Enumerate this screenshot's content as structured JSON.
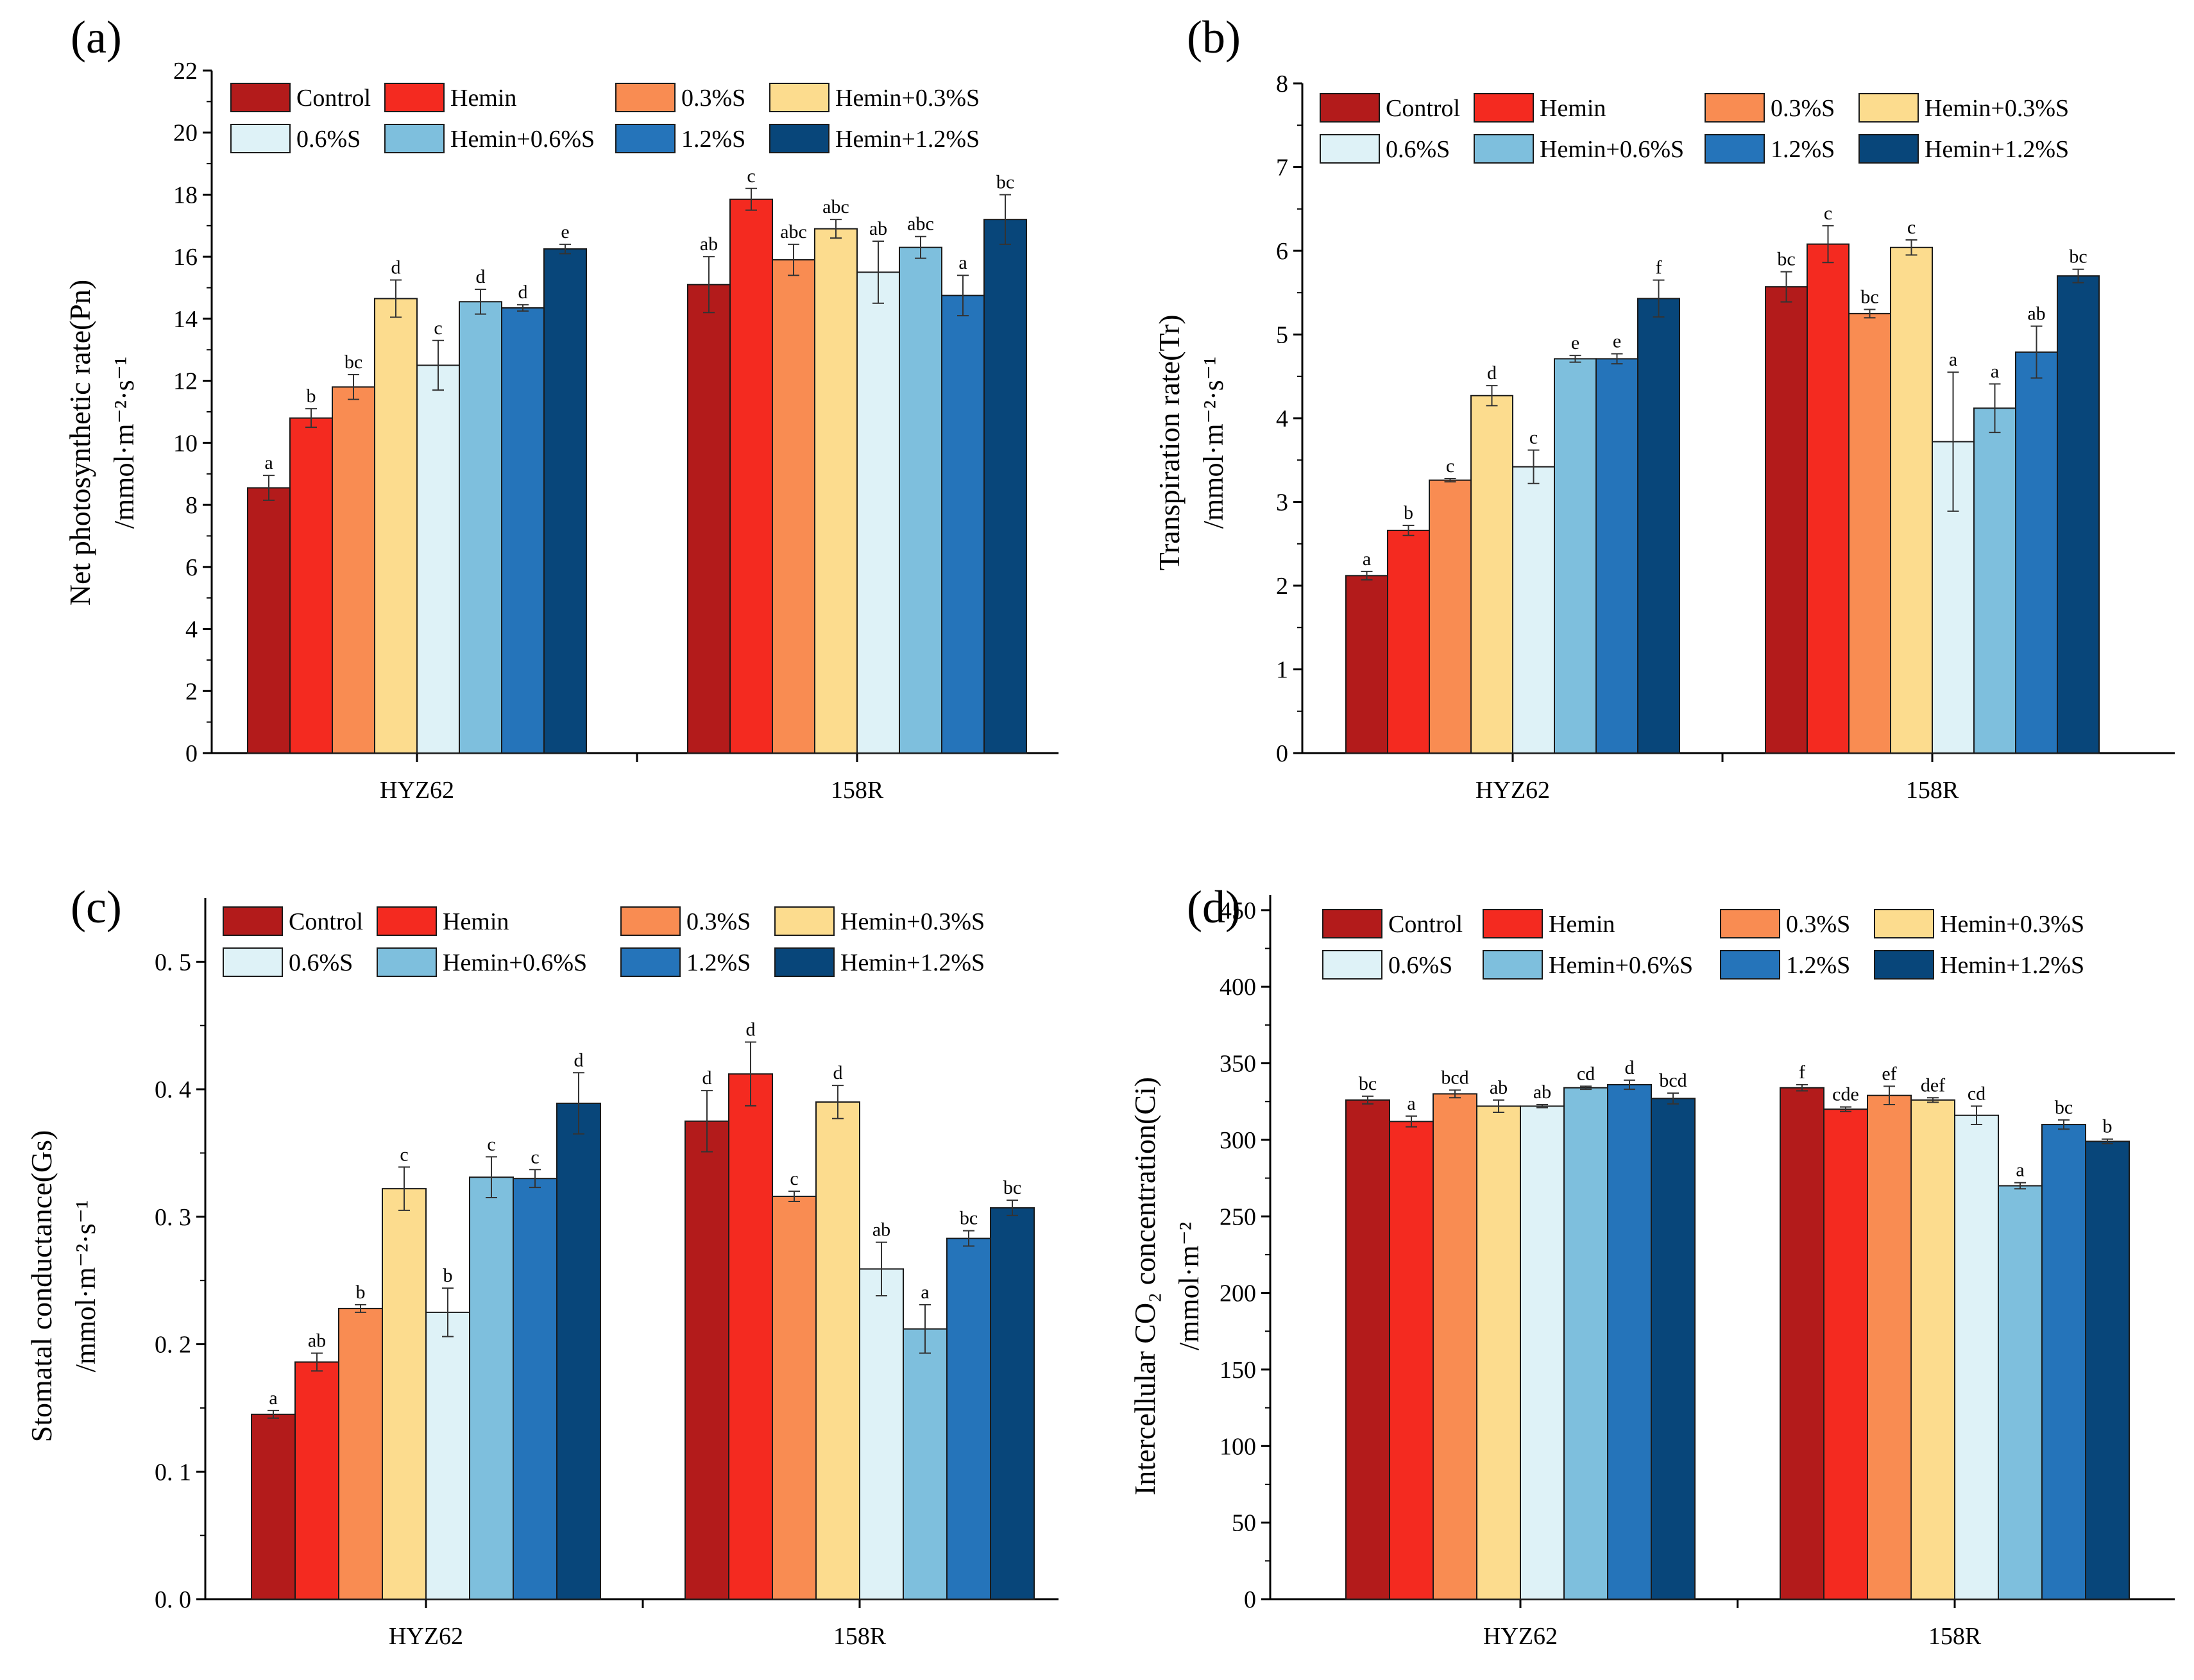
{
  "legend": {
    "labels": [
      "Control",
      "Hemin",
      "0.3%S",
      "Hemin+0.3%S",
      "0.6%S",
      "Hemin+0.6%S",
      "1.2%S",
      "Hemin+1.2%S"
    ],
    "colors": [
      "#b31b1b",
      "#f42a20",
      "#f98c52",
      "#fcdc8e",
      "#def2f7",
      "#7ebfdd",
      "#2574ba",
      "#08467a"
    ]
  },
  "chart_data": [
    {
      "type": "bar",
      "panel": "(a)",
      "title": "",
      "xlabel": "",
      "ylabel": "Net photosynthetic rate(Pn)",
      "ylabel_unit": "/mmol·m⁻²·s⁻¹",
      "categories": [
        "HYZ62",
        "158R"
      ],
      "ylim": [
        0,
        22
      ],
      "yticks": [
        0,
        2,
        4,
        6,
        8,
        10,
        12,
        14,
        16,
        18,
        20,
        22
      ],
      "series": [
        {
          "name": "Control",
          "values": [
            8.55,
            15.1
          ],
          "errors": [
            0.4,
            0.9
          ],
          "sig": [
            "a",
            "ab"
          ]
        },
        {
          "name": "Hemin",
          "values": [
            10.8,
            17.85
          ],
          "errors": [
            0.3,
            0.35
          ],
          "sig": [
            "b",
            "c"
          ]
        },
        {
          "name": "0.3%S",
          "values": [
            11.8,
            15.9
          ],
          "errors": [
            0.4,
            0.5
          ],
          "sig": [
            "bc",
            "abc"
          ]
        },
        {
          "name": "Hemin+0.3%S",
          "values": [
            14.65,
            16.9
          ],
          "errors": [
            0.6,
            0.3
          ],
          "sig": [
            "d",
            "abc"
          ]
        },
        {
          "name": "0.6%S",
          "values": [
            12.5,
            15.5
          ],
          "errors": [
            0.8,
            1.0
          ],
          "sig": [
            "c",
            "ab"
          ]
        },
        {
          "name": "Hemin+0.6%S",
          "values": [
            14.55,
            16.3
          ],
          "errors": [
            0.4,
            0.35
          ],
          "sig": [
            "d",
            "abc"
          ]
        },
        {
          "name": "1.2%S",
          "values": [
            14.35,
            14.75
          ],
          "errors": [
            0.1,
            0.65
          ],
          "sig": [
            "d",
            "a"
          ]
        },
        {
          "name": "Hemin+1.2%S",
          "values": [
            16.25,
            17.2
          ],
          "errors": [
            0.15,
            0.8
          ],
          "sig": [
            "e",
            "bc"
          ]
        }
      ]
    },
    {
      "type": "bar",
      "panel": "(b)",
      "title": "",
      "xlabel": "",
      "ylabel": "Transpiration rate(Tr)",
      "ylabel_unit": "/mmol·m⁻²·s⁻¹",
      "categories": [
        "HYZ62",
        "158R"
      ],
      "ylim": [
        0,
        8
      ],
      "yticks": [
        0,
        1,
        2,
        3,
        4,
        5,
        6,
        7,
        8
      ],
      "series": [
        {
          "name": "Control",
          "values": [
            2.12,
            5.57
          ],
          "errors": [
            0.05,
            0.18
          ],
          "sig": [
            "a",
            "bc"
          ]
        },
        {
          "name": "Hemin",
          "values": [
            2.66,
            6.08
          ],
          "errors": [
            0.06,
            0.22
          ],
          "sig": [
            "b",
            "c"
          ]
        },
        {
          "name": "0.3%S",
          "values": [
            3.26,
            5.25
          ],
          "errors": [
            0.02,
            0.05
          ],
          "sig": [
            "c",
            "bc"
          ]
        },
        {
          "name": "Hemin+0.3%S",
          "values": [
            4.27,
            6.04
          ],
          "errors": [
            0.12,
            0.09
          ],
          "sig": [
            "d",
            "c"
          ]
        },
        {
          "name": "0.6%S",
          "values": [
            3.42,
            3.72
          ],
          "errors": [
            0.2,
            0.83
          ],
          "sig": [
            "c",
            "a"
          ]
        },
        {
          "name": "Hemin+0.6%S",
          "values": [
            4.71,
            4.12
          ],
          "errors": [
            0.04,
            0.29
          ],
          "sig": [
            "e",
            "a"
          ]
        },
        {
          "name": "1.2%S",
          "values": [
            4.71,
            4.79
          ],
          "errors": [
            0.06,
            0.31
          ],
          "sig": [
            "e",
            "ab"
          ]
        },
        {
          "name": "Hemin+1.2%S",
          "values": [
            5.43,
            5.7
          ],
          "errors": [
            0.22,
            0.08
          ],
          "sig": [
            "f",
            "bc"
          ]
        }
      ]
    },
    {
      "type": "bar",
      "panel": "(c)",
      "title": "",
      "xlabel": "",
      "ylabel": "Stomatal conductance(Gs)",
      "ylabel_unit": "/mmol·m⁻²·s⁻¹",
      "categories": [
        "HYZ62",
        "158R"
      ],
      "ylim": [
        0,
        0.55
      ],
      "yticks": [
        0,
        0.1,
        0.2,
        0.3,
        0.4,
        0.5
      ],
      "ytick_labels": [
        "0. 0",
        "0. 1",
        "0. 2",
        "0. 3",
        "0. 4",
        "0. 5"
      ],
      "series": [
        {
          "name": "Control",
          "values": [
            0.145,
            0.375
          ],
          "errors": [
            0.003,
            0.024
          ],
          "sig": [
            "a",
            "d"
          ]
        },
        {
          "name": "Hemin",
          "values": [
            0.186,
            0.412
          ],
          "errors": [
            0.007,
            0.025
          ],
          "sig": [
            "ab",
            "d"
          ]
        },
        {
          "name": "0.3%S",
          "values": [
            0.228,
            0.316
          ],
          "errors": [
            0.003,
            0.004
          ],
          "sig": [
            "b",
            "c"
          ]
        },
        {
          "name": "Hemin+0.3%S",
          "values": [
            0.322,
            0.39
          ],
          "errors": [
            0.017,
            0.013
          ],
          "sig": [
            "c",
            "d"
          ]
        },
        {
          "name": "0.6%S",
          "values": [
            0.225,
            0.259
          ],
          "errors": [
            0.019,
            0.021
          ],
          "sig": [
            "b",
            "ab"
          ]
        },
        {
          "name": "Hemin+0.6%S",
          "values": [
            0.331,
            0.212
          ],
          "errors": [
            0.016,
            0.019
          ],
          "sig": [
            "c",
            "a"
          ]
        },
        {
          "name": "1.2%S",
          "values": [
            0.33,
            0.283
          ],
          "errors": [
            0.007,
            0.006
          ],
          "sig": [
            "c",
            "bc"
          ]
        },
        {
          "name": "Hemin+1.2%S",
          "values": [
            0.389,
            0.307
          ],
          "errors": [
            0.024,
            0.006
          ],
          "sig": [
            "d",
            "bc"
          ]
        }
      ]
    },
    {
      "type": "bar",
      "panel": "(d)",
      "title": "",
      "xlabel": "",
      "ylabel": "Intercellular CO₂ concentration(Ci)",
      "ylabel_unit": "/mmol·m⁻²",
      "categories": [
        "HYZ62",
        "158R"
      ],
      "ylim": [
        0,
        460
      ],
      "yticks": [
        0,
        50,
        100,
        150,
        200,
        250,
        300,
        350,
        400,
        450
      ],
      "series": [
        {
          "name": "Control",
          "values": [
            326,
            334
          ],
          "errors": [
            2.5,
            2
          ],
          "sig": [
            "bc",
            "f"
          ]
        },
        {
          "name": "Hemin",
          "values": [
            312,
            320
          ],
          "errors": [
            3.5,
            1.5
          ],
          "sig": [
            "a",
            "cde"
          ]
        },
        {
          "name": "0.3%S",
          "values": [
            330,
            329
          ],
          "errors": [
            2.5,
            6
          ],
          "sig": [
            "bcd",
            "ef"
          ]
        },
        {
          "name": "Hemin+0.3%S",
          "values": [
            322,
            326
          ],
          "errors": [
            4,
            1.5
          ],
          "sig": [
            "ab",
            "def"
          ]
        },
        {
          "name": "0.6%S",
          "values": [
            322,
            316
          ],
          "errors": [
            1,
            6
          ],
          "sig": [
            "ab",
            "cd"
          ]
        },
        {
          "name": "Hemin+0.6%S",
          "values": [
            334,
            270
          ],
          "errors": [
            1,
            2
          ],
          "sig": [
            "cd",
            "a"
          ]
        },
        {
          "name": "1.2%S",
          "values": [
            336,
            310
          ],
          "errors": [
            3,
            3
          ],
          "sig": [
            "d",
            "bc"
          ]
        },
        {
          "name": "Hemin+1.2%S",
          "values": [
            327,
            299
          ],
          "errors": [
            3.5,
            1.5
          ],
          "sig": [
            "bcd",
            "b"
          ]
        }
      ]
    }
  ]
}
